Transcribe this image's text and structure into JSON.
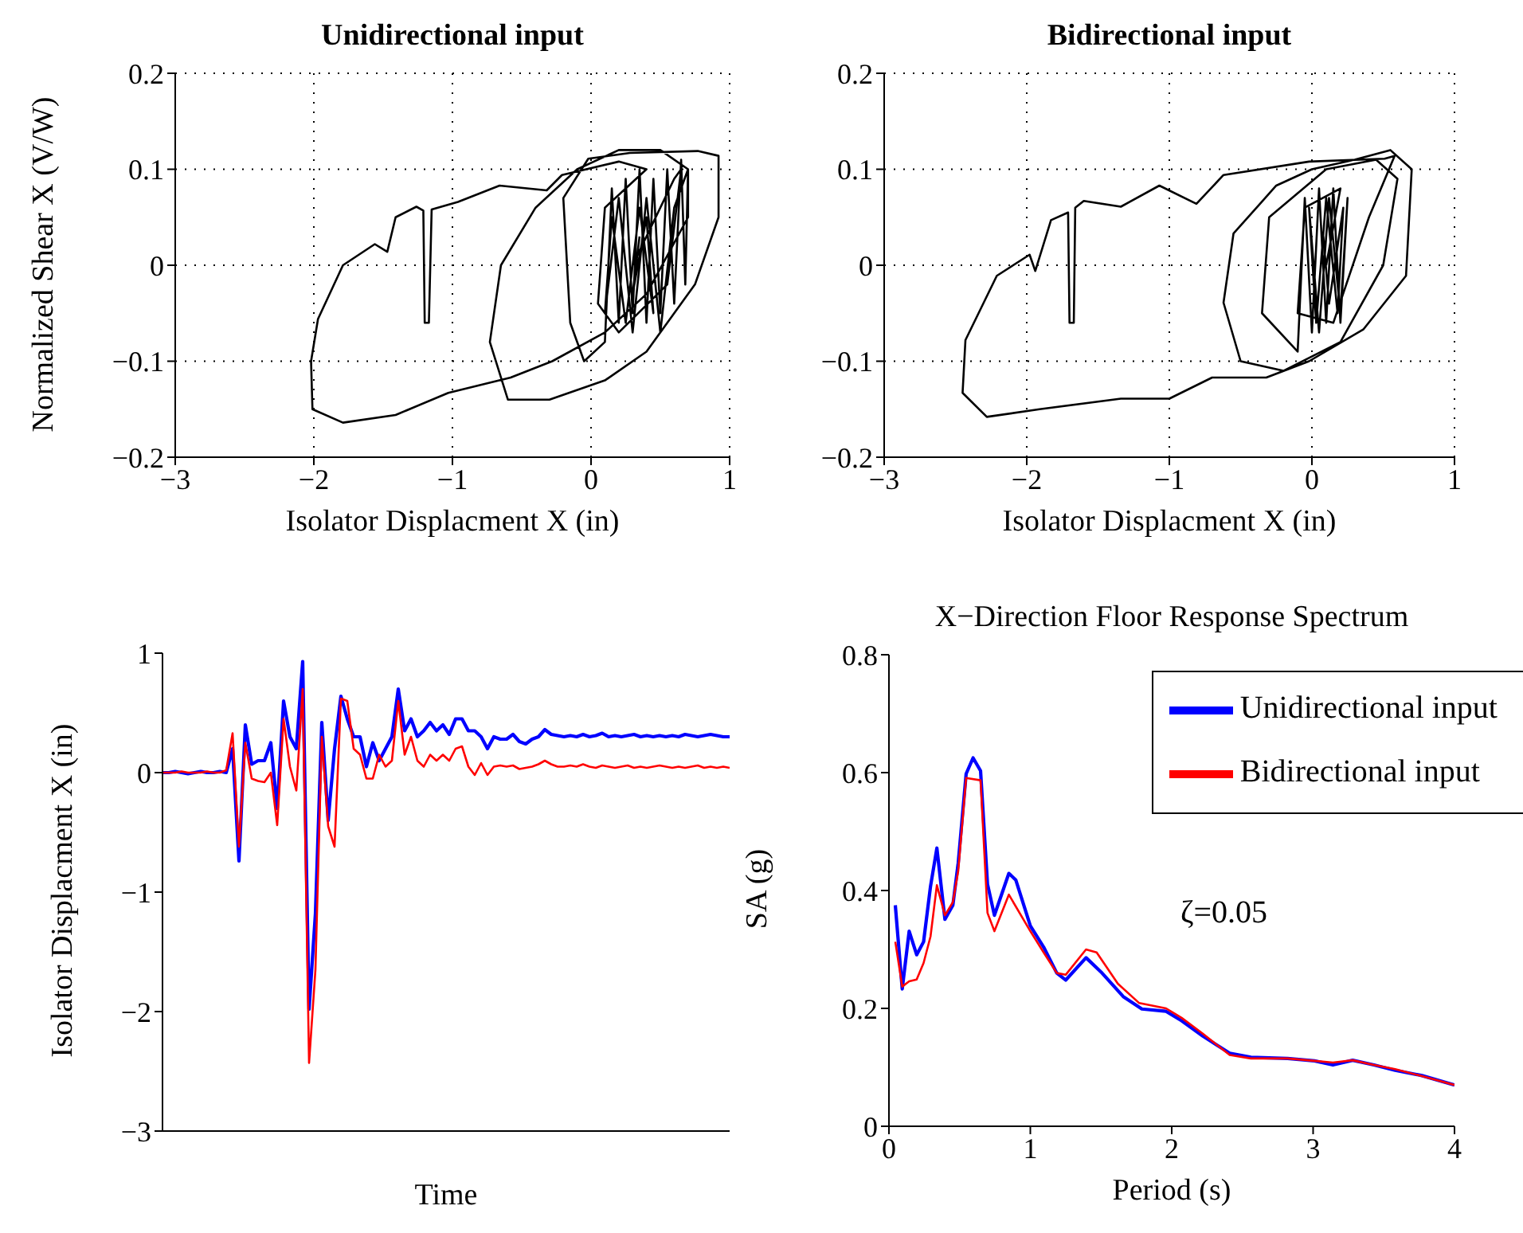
{
  "chart_data": [
    {
      "type": "line",
      "title": "Unidirectional input",
      "xlabel": "Isolator Displacment X (in)",
      "ylabel": "Normalized Shear X (V/W)",
      "xlim": [
        -3,
        1
      ],
      "ylim": [
        -0.2,
        0.2
      ],
      "xticks": [
        -3,
        -2,
        -1,
        0,
        1
      ],
      "yticks": [
        -0.2,
        -0.1,
        0,
        0.1,
        0.2
      ],
      "grid": true,
      "series": [
        {
          "color": "#000000",
          "x": [
            0.3,
            0.6,
            0.65,
            0.55,
            0.2,
            0.05,
            0.1,
            0.4,
            0.2,
            -0.21,
            -0.32,
            -0.66,
            -0.96,
            -1.15,
            -1.17,
            -1.2,
            -1.21,
            -1.26,
            -1.41,
            -1.47,
            -1.56,
            -1.79,
            -1.97,
            -2.02,
            -2.01,
            -1.79,
            -1.41,
            -1.03,
            -0.58,
            -0.28,
            0.1,
            0.4,
            0.7,
            0.7,
            0.5,
            0.2,
            -0.1,
            -0.4,
            -0.65,
            -0.73,
            -0.6,
            -0.3,
            0.1,
            0.4,
            0.75,
            0.92,
            0.92,
            0.77,
            0.28,
            -0.02,
            -0.2,
            -0.15,
            -0.05,
            0.1,
            0.15,
            0.2,
            0.25,
            0.3,
            0.35,
            0.4,
            0.45,
            0.5,
            0.55,
            0.6,
            0.65,
            0.68,
            0.7,
            0.6,
            0.5,
            0.4,
            0.3,
            0.2,
            0.1,
            0.15,
            0.25,
            0.35,
            0.45,
            0.4,
            0.3,
            0.35
          ],
          "values": [
            0,
            0.09,
            0.1,
            -0.02,
            -0.07,
            -0.04,
            0.06,
            0.1,
            0.108,
            0.094,
            0.078,
            0.083,
            0.066,
            0.058,
            -0.06,
            -0.06,
            0.057,
            0.061,
            0.05,
            0.014,
            0.022,
            0,
            -0.056,
            -0.1,
            -0.15,
            -0.164,
            -0.156,
            -0.133,
            -0.117,
            -0.1,
            -0.07,
            -0.03,
            0.05,
            0.1,
            0.12,
            0.12,
            0.1,
            0.06,
            0,
            -0.08,
            -0.14,
            -0.14,
            -0.12,
            -0.09,
            -0.02,
            0.05,
            0.114,
            0.119,
            0.117,
            0.111,
            0.07,
            -0.06,
            -0.1,
            -0.08,
            0.08,
            -0.06,
            0.09,
            -0.05,
            0.1,
            -0.06,
            0.09,
            -0.05,
            0.1,
            -0.04,
            0.11,
            -0.02,
            0.1,
            0.06,
            -0.07,
            0.07,
            -0.07,
            0.07,
            -0.05,
            0.05,
            -0.06,
            0.06,
            -0.05,
            0.05,
            -0.03,
            0.03
          ]
        }
      ]
    },
    {
      "type": "line",
      "title": "Bidirectional input",
      "xlabel": "Isolator Displacment X (in)",
      "xlim": [
        -3,
        1
      ],
      "ylim": [
        -0.2,
        0.2
      ],
      "xticks": [
        -3,
        -2,
        -1,
        0,
        1
      ],
      "yticks": [
        -0.2,
        -0.1,
        0,
        0.1,
        0.2
      ],
      "grid": true,
      "series": [
        {
          "color": "#000000",
          "x": [
            0.1,
            0.2,
            -0.05,
            -0.1,
            0.15,
            0.4,
            0.58,
            0.51,
            -0.02,
            -0.62,
            -0.81,
            -1.07,
            -1.34,
            -1.6,
            -1.66,
            -1.67,
            -1.7,
            -1.71,
            -1.83,
            -1.94,
            -1.98,
            -2.21,
            -2.43,
            -2.45,
            -2.28,
            -1.91,
            -1.34,
            -1.0,
            -0.7,
            -0.32,
            -0.02,
            0.36,
            0.66,
            0.7,
            0.55,
            0.3,
            0,
            -0.25,
            -0.55,
            -0.62,
            -0.5,
            -0.2,
            0.2,
            0.5,
            0.6,
            0.45,
            0.1,
            -0.3,
            -0.35,
            -0.1,
            -0.05,
            0,
            0.05,
            0.1,
            0.15,
            0.2,
            0.25,
            0.2,
            0.12,
            0.05,
            -0.02,
            0.03,
            0.1,
            0.18,
            0.22,
            0.12,
            0.08
          ],
          "values": [
            0,
            0.08,
            0.06,
            -0.05,
            -0.06,
            0.05,
            0.114,
            0.111,
            0.108,
            0.094,
            0.064,
            0.083,
            0.061,
            0.067,
            0.06,
            -0.06,
            -0.06,
            0.055,
            0.047,
            -0.006,
            0.011,
            -0.011,
            -0.078,
            -0.133,
            -0.158,
            -0.15,
            -0.139,
            -0.139,
            -0.117,
            -0.117,
            -0.1,
            -0.067,
            -0.011,
            0.1,
            0.12,
            0.11,
            0.1,
            0.083,
            0.033,
            -0.039,
            -0.1,
            -0.11,
            -0.08,
            0,
            0.09,
            0.11,
            0.1,
            0.05,
            -0.05,
            -0.09,
            0.07,
            -0.07,
            0.08,
            -0.06,
            0.08,
            -0.06,
            0.07,
            -0.05,
            0.07,
            -0.07,
            0.06,
            -0.06,
            0.07,
            -0.05,
            0.06,
            -0.04,
            0.03
          ]
        }
      ]
    },
    {
      "type": "line",
      "xlabel": "Time",
      "ylabel": "Isolator Displacment X (in)",
      "ylim": [
        -3,
        1
      ],
      "yticks": [
        -3,
        -2,
        -1,
        0,
        1
      ],
      "tick_labels": "y",
      "categories": [
        null,
        null,
        null,
        null,
        null,
        null,
        null,
        null,
        null,
        null,
        null,
        null,
        null,
        null,
        null,
        null,
        null,
        null,
        null,
        null,
        null,
        null,
        null,
        null,
        null,
        null,
        null,
        null,
        null,
        null,
        null,
        null,
        null,
        null,
        null,
        null,
        null,
        null,
        null,
        null,
        null,
        null,
        null,
        null,
        null,
        null,
        null,
        null,
        null,
        null,
        null,
        null,
        null,
        null,
        null,
        null,
        null,
        null,
        null,
        null,
        null,
        null,
        null,
        null,
        null,
        null,
        null,
        null,
        null,
        null,
        null,
        null,
        null,
        null,
        null,
        null,
        null,
        null,
        null,
        null,
        null,
        null,
        null,
        null,
        null,
        null,
        null,
        null,
        null,
        null
      ],
      "series": [
        {
          "color": "#0000ff",
          "values": [
            0,
            0,
            0.01,
            0,
            -0.01,
            0,
            0.01,
            0,
            0,
            0.01,
            0,
            0.2,
            -0.74,
            0.4,
            0.07,
            0.1,
            0.1,
            0.25,
            -0.3,
            0.6,
            0.3,
            0.2,
            0.93,
            -1.98,
            -1.18,
            0.42,
            -0.4,
            0.2,
            0.64,
            0.45,
            0.3,
            0.3,
            0.05,
            0.25,
            0.1,
            0.2,
            0.3,
            0.7,
            0.35,
            0.45,
            0.3,
            0.35,
            0.42,
            0.35,
            0.4,
            0.32,
            0.45,
            0.45,
            0.35,
            0.35,
            0.3,
            0.2,
            0.3,
            0.28,
            0.28,
            0.32,
            0.26,
            0.24,
            0.28,
            0.3,
            0.36,
            0.32,
            0.31,
            0.3,
            0.31,
            0.3,
            0.32,
            0.3,
            0.31,
            0.33,
            0.3,
            0.31,
            0.3,
            0.31,
            0.32,
            0.3,
            0.31,
            0.3,
            0.31,
            0.3,
            0.31,
            0.3,
            0.32,
            0.31,
            0.3,
            0.31,
            0.32,
            0.31,
            0.3,
            0.3
          ]
        },
        {
          "color": "#ff0000",
          "values": [
            0,
            0,
            0,
            0.01,
            0,
            0,
            0,
            0.01,
            0,
            0,
            0.02,
            0.33,
            -0.62,
            0.25,
            -0.05,
            -0.07,
            -0.08,
            0,
            -0.44,
            0.45,
            0.05,
            -0.15,
            0.7,
            -2.43,
            -1.65,
            0.3,
            -0.45,
            -0.62,
            0.62,
            0.6,
            0.2,
            0.15,
            -0.05,
            -0.05,
            0.15,
            0.05,
            0.1,
            0.6,
            0.15,
            0.3,
            0.1,
            0.05,
            0.15,
            0.1,
            0.15,
            0.1,
            0.2,
            0.22,
            0.05,
            -0.02,
            0.08,
            -0.02,
            0.05,
            0.06,
            0.05,
            0.06,
            0.03,
            0.04,
            0.05,
            0.07,
            0.1,
            0.07,
            0.05,
            0.05,
            0.06,
            0.05,
            0.07,
            0.05,
            0.04,
            0.06,
            0.05,
            0.04,
            0.05,
            0.06,
            0.04,
            0.05,
            0.04,
            0.05,
            0.06,
            0.05,
            0.04,
            0.05,
            0.04,
            0.05,
            0.06,
            0.04,
            0.05,
            0.04,
            0.05,
            0.04
          ]
        }
      ]
    },
    {
      "type": "line",
      "title": "X−Direction Floor Response Spectrum",
      "xlabel": "Period (s)",
      "ylabel": "SA (g)",
      "xlim": [
        0,
        4
      ],
      "ylim": [
        0,
        0.8
      ],
      "xticks": [
        0,
        1,
        2,
        3,
        4
      ],
      "yticks": [
        0,
        0.2,
        0.4,
        0.6,
        0.8
      ],
      "legend": "top right",
      "annotations": [
        "ζ=0.05"
      ],
      "series": [
        {
          "name": "Unidirectional input",
          "color": "#0000ff",
          "x": [
            0.045,
            0.094,
            0.143,
            0.196,
            0.245,
            0.294,
            0.339,
            0.396,
            0.452,
            0.49,
            0.546,
            0.595,
            0.648,
            0.697,
            0.746,
            0.848,
            0.897,
            1.0,
            1.094,
            1.187,
            1.25,
            1.394,
            1.507,
            1.657,
            1.789,
            1.96,
            2.07,
            2.22,
            2.41,
            2.56,
            2.82,
            3.01,
            3.14,
            3.28,
            3.43,
            3.58,
            3.77,
            4.0
          ],
          "values": [
            0.375,
            0.233,
            0.331,
            0.291,
            0.313,
            0.407,
            0.472,
            0.351,
            0.375,
            0.447,
            0.598,
            0.625,
            0.603,
            0.411,
            0.358,
            0.429,
            0.418,
            0.34,
            0.304,
            0.26,
            0.248,
            0.286,
            0.26,
            0.22,
            0.199,
            0.195,
            0.179,
            0.153,
            0.124,
            0.117,
            0.115,
            0.111,
            0.104,
            0.112,
            0.104,
            0.095,
            0.086,
            0.07
          ]
        },
        {
          "name": "Bidirectional input",
          "color": "#ff0000",
          "x": [
            0.045,
            0.094,
            0.143,
            0.196,
            0.245,
            0.294,
            0.339,
            0.396,
            0.452,
            0.49,
            0.546,
            0.648,
            0.697,
            0.746,
            0.848,
            1.0,
            1.094,
            1.187,
            1.25,
            1.394,
            1.469,
            1.619,
            1.77,
            1.96,
            2.07,
            2.22,
            2.41,
            2.56,
            2.82,
            3.01,
            3.14,
            3.28,
            3.43,
            3.58,
            3.77,
            4.0
          ],
          "values": [
            0.313,
            0.237,
            0.246,
            0.249,
            0.277,
            0.322,
            0.409,
            0.358,
            0.38,
            0.433,
            0.591,
            0.587,
            0.362,
            0.331,
            0.393,
            0.331,
            0.295,
            0.26,
            0.257,
            0.3,
            0.295,
            0.242,
            0.209,
            0.2,
            0.184,
            0.157,
            0.121,
            0.115,
            0.115,
            0.111,
            0.108,
            0.112,
            0.104,
            0.097,
            0.085,
            0.07
          ]
        }
      ]
    }
  ]
}
